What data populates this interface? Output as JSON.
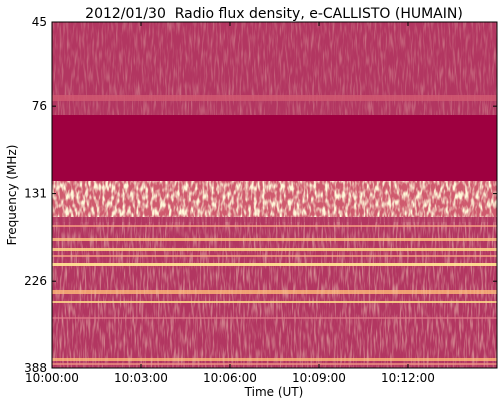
{
  "chart_data": {
    "type": "spectrogram",
    "title": "2012/01/30  Radio flux density, e-CALLISTO (HUMAIN)",
    "xlabel": "Time (UT)",
    "ylabel": "Frequency (MHz)",
    "xlim": [
      36000,
      36900
    ],
    "xticks": [
      {
        "value": 36000,
        "label": "10:00:00"
      },
      {
        "value": 36180,
        "label": "10:03:00"
      },
      {
        "value": 36360,
        "label": "10:06:00"
      },
      {
        "value": 36540,
        "label": "10:09:00"
      },
      {
        "value": 36720,
        "label": "10:12:00"
      }
    ],
    "ylim": [
      45,
      388
    ],
    "yscale": "log",
    "yinverted": true,
    "yticks": [
      45,
      76,
      131,
      226,
      388
    ]
  }
}
